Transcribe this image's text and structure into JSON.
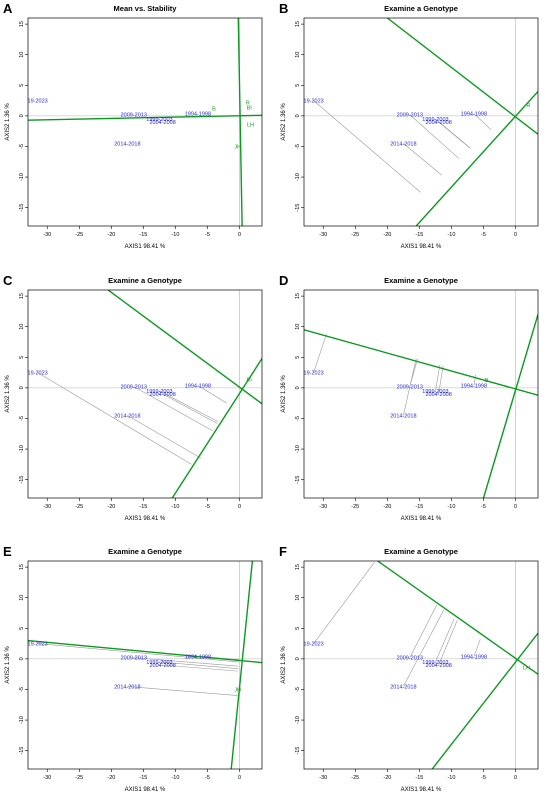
{
  "chart_data": [
    {
      "panel": "A",
      "type": "scatter",
      "title": "Mean vs. Stability",
      "xlabel": "AXIS1 98.41 %",
      "ylabel": "AXIS2 1.36 %",
      "xlim": [
        -33,
        3.5
      ],
      "ylim": [
        -18,
        16
      ],
      "xticks": [
        -30,
        -25,
        -20,
        -15,
        -10,
        -5,
        0
      ],
      "yticks": [
        -15,
        -10,
        -5,
        0,
        5,
        10,
        15
      ],
      "environments": [
        {
          "label": "19-2023",
          "x": -31.5,
          "y": 2.5
        },
        {
          "label": "2009-2013",
          "x": -16.5,
          "y": 0.2
        },
        {
          "label": "1999-2003",
          "x": -12.5,
          "y": -0.5
        },
        {
          "label": "2004-2008",
          "x": -12.0,
          "y": -1.0
        },
        {
          "label": "1994-1998",
          "x": -6.5,
          "y": 0.4
        },
        {
          "label": "2014-2018",
          "x": -17.5,
          "y": -4.5
        }
      ],
      "genotypes": [
        {
          "label": "R",
          "x": 1.3,
          "y": 2.2
        },
        {
          "label": "BI",
          "x": 1.5,
          "y": 1.4
        },
        {
          "label": "LH",
          "x": 1.7,
          "y": -1.4
        },
        {
          "label": "JH",
          "x": -0.3,
          "y": -5.0
        },
        {
          "label": "B",
          "x": -4.0,
          "y": 1.2
        }
      ],
      "green_lines": [
        {
          "from": [
            -33,
            -0.7
          ],
          "to": [
            3.5,
            0.1
          ]
        },
        {
          "from": [
            -0.2,
            16
          ],
          "to": [
            0.4,
            -18
          ]
        }
      ],
      "projections": []
    },
    {
      "panel": "B",
      "type": "scatter",
      "title": "Examine a Genotype",
      "xlabel": "AXIS1 98.41 %",
      "ylabel": "AXIS2 1.36 %",
      "xlim": [
        -33,
        3.5
      ],
      "ylim": [
        -18,
        16
      ],
      "xticks": [
        -30,
        -25,
        -20,
        -15,
        -10,
        -5,
        0
      ],
      "yticks": [
        -15,
        -10,
        -5,
        0,
        5,
        10,
        15
      ],
      "environments": [
        {
          "label": "19-2023",
          "x": -31.5,
          "y": 2.5
        },
        {
          "label": "2009-2013",
          "x": -16.5,
          "y": 0.2
        },
        {
          "label": "1999-2003",
          "x": -12.5,
          "y": -0.5
        },
        {
          "label": "2004-2008",
          "x": -12.0,
          "y": -1.0
        },
        {
          "label": "1994-1998",
          "x": -6.5,
          "y": 0.4
        },
        {
          "label": "2014-2018",
          "x": -17.5,
          "y": -4.5
        }
      ],
      "genotypes": [
        {
          "label": "R",
          "x": 2.0,
          "y": 1.8
        }
      ],
      "green_lines": [
        {
          "from": [
            -20,
            16
          ],
          "to": [
            3.5,
            -3
          ]
        },
        {
          "from": [
            -15.5,
            -18
          ],
          "to": [
            3.5,
            4.0
          ]
        }
      ],
      "projections": [
        {
          "from": [
            -31.5,
            2.5
          ],
          "to": [
            -14.8,
            -12.5
          ]
        },
        {
          "from": [
            -16.5,
            0.2
          ],
          "to": [
            -8.8,
            -7.0
          ]
        },
        {
          "from": [
            -12.5,
            -0.5
          ],
          "to": [
            -7.0,
            -5.3
          ]
        },
        {
          "from": [
            -12.0,
            -1.0
          ],
          "to": [
            -7.2,
            -5.2
          ]
        },
        {
          "from": [
            -6.5,
            0.4
          ],
          "to": [
            -3.8,
            -2.3
          ]
        },
        {
          "from": [
            -17.5,
            -4.5
          ],
          "to": [
            -11.5,
            -9.7
          ]
        }
      ]
    },
    {
      "panel": "C",
      "type": "scatter",
      "title": "Examine a Genotype",
      "xlabel": "AXIS1 98.41 %",
      "ylabel": "AXIS2 1.36 %",
      "xlim": [
        -33,
        3.5
      ],
      "ylim": [
        -18,
        16
      ],
      "xticks": [
        -30,
        -25,
        -20,
        -15,
        -10,
        -5,
        0
      ],
      "yticks": [
        -15,
        -10,
        -5,
        0,
        5,
        10,
        15
      ],
      "environments": [
        {
          "label": "19-2023",
          "x": -31.5,
          "y": 2.5
        },
        {
          "label": "2009-2013",
          "x": -16.5,
          "y": 0.2
        },
        {
          "label": "1999-2003",
          "x": -12.5,
          "y": -0.5
        },
        {
          "label": "2004-2008",
          "x": -12.0,
          "y": -1.0
        },
        {
          "label": "1994-1998",
          "x": -6.5,
          "y": 0.4
        },
        {
          "label": "2014-2018",
          "x": -17.5,
          "y": -4.5
        }
      ],
      "genotypes": [
        {
          "label": "BI",
          "x": 1.5,
          "y": 1.4
        }
      ],
      "green_lines": [
        {
          "from": [
            -20.5,
            16
          ],
          "to": [
            3.5,
            -2.6
          ]
        },
        {
          "from": [
            -10.5,
            -18
          ],
          "to": [
            3.5,
            4.8
          ]
        }
      ],
      "projections": [
        {
          "from": [
            -31.5,
            2.5
          ],
          "to": [
            -7.5,
            -12.5
          ]
        },
        {
          "from": [
            -16.5,
            0.2
          ],
          "to": [
            -4.2,
            -7.0
          ]
        },
        {
          "from": [
            -12.5,
            -0.5
          ],
          "to": [
            -3.4,
            -5.5
          ]
        },
        {
          "from": [
            -12.0,
            -1.0
          ],
          "to": [
            -3.5,
            -5.8
          ]
        },
        {
          "from": [
            -6.5,
            0.4
          ],
          "to": [
            -2.0,
            -2.5
          ]
        },
        {
          "from": [
            -17.5,
            -4.5
          ],
          "to": [
            -6.0,
            -11.5
          ]
        }
      ]
    },
    {
      "panel": "D",
      "type": "scatter",
      "title": "Examine a Genotype",
      "xlabel": "AXIS1 98.41 %",
      "ylabel": "AXIS2 1.36 %",
      "xlim": [
        -33,
        3.5
      ],
      "ylim": [
        -18,
        16
      ],
      "xticks": [
        -30,
        -25,
        -20,
        -15,
        -10,
        -5,
        0
      ],
      "yticks": [
        -15,
        -10,
        -5,
        0,
        5,
        10,
        15
      ],
      "environments": [
        {
          "label": "19-2023",
          "x": -31.5,
          "y": 2.5
        },
        {
          "label": "2009-2013",
          "x": -16.5,
          "y": 0.2
        },
        {
          "label": "1999-2003",
          "x": -12.5,
          "y": -0.5
        },
        {
          "label": "2004-2008",
          "x": -12.0,
          "y": -1.0
        },
        {
          "label": "1994-1998",
          "x": -6.5,
          "y": 0.4
        },
        {
          "label": "2014-2018",
          "x": -17.5,
          "y": -4.5
        }
      ],
      "genotypes": [
        {
          "label": "B",
          "x": -4.5,
          "y": 1.3
        }
      ],
      "green_lines": [
        {
          "from": [
            -33,
            9.5
          ],
          "to": [
            3.5,
            -1.2
          ]
        },
        {
          "from": [
            -5.0,
            -18
          ],
          "to": [
            3.5,
            12.0
          ]
        }
      ],
      "projections": [
        {
          "from": [
            -31.5,
            2.5
          ],
          "to": [
            -29.5,
            8.8
          ]
        },
        {
          "from": [
            -16.5,
            0.2
          ],
          "to": [
            -15.3,
            4.7
          ]
        },
        {
          "from": [
            -12.5,
            -0.5
          ],
          "to": [
            -11.8,
            3.8
          ]
        },
        {
          "from": [
            -12.0,
            -1.0
          ],
          "to": [
            -11.3,
            3.6
          ]
        },
        {
          "from": [
            -6.5,
            0.4
          ],
          "to": [
            -6.2,
            2.2
          ]
        },
        {
          "from": [
            -17.5,
            -4.5
          ],
          "to": [
            -15.5,
            4.8
          ]
        }
      ]
    },
    {
      "panel": "E",
      "type": "scatter",
      "title": "Examine a Genotype",
      "xlabel": "AXIS1 98.41 %",
      "ylabel": "AXIS2 1.36 %",
      "xlim": [
        -33,
        3.5
      ],
      "ylim": [
        -18,
        16
      ],
      "xticks": [
        -30,
        -25,
        -20,
        -15,
        -10,
        -5,
        0
      ],
      "yticks": [
        -15,
        -10,
        -5,
        0,
        5,
        10,
        15
      ],
      "environments": [
        {
          "label": "19-2023",
          "x": -31.5,
          "y": 2.5
        },
        {
          "label": "2009-2013",
          "x": -16.5,
          "y": 0.2
        },
        {
          "label": "1999-2003",
          "x": -12.5,
          "y": -0.5
        },
        {
          "label": "2004-2008",
          "x": -12.0,
          "y": -1.0
        },
        {
          "label": "1994-1998",
          "x": -6.5,
          "y": 0.4
        },
        {
          "label": "2014-2018",
          "x": -17.5,
          "y": -4.5
        }
      ],
      "genotypes": [
        {
          "label": "JH",
          "x": -0.3,
          "y": -5.0
        }
      ],
      "green_lines": [
        {
          "from": [
            -33,
            3.0
          ],
          "to": [
            3.5,
            -0.6
          ]
        },
        {
          "from": [
            -1.3,
            -18
          ],
          "to": [
            2.0,
            16
          ]
        }
      ],
      "projections": [
        {
          "from": [
            -31.5,
            2.5
          ],
          "to": [
            -0.1,
            -0.5
          ]
        },
        {
          "from": [
            -16.5,
            0.2
          ],
          "to": [
            -0.2,
            -1.2
          ]
        },
        {
          "from": [
            -12.5,
            -0.5
          ],
          "to": [
            -0.2,
            -1.6
          ]
        },
        {
          "from": [
            -12.0,
            -1.0
          ],
          "to": [
            -0.3,
            -2.0
          ]
        },
        {
          "from": [
            -6.5,
            0.4
          ],
          "to": [
            -0.1,
            -0.1
          ]
        },
        {
          "from": [
            -17.5,
            -4.5
          ],
          "to": [
            -0.3,
            -6.0
          ]
        }
      ]
    },
    {
      "panel": "F",
      "type": "scatter",
      "title": "Examine a Genotype",
      "xlabel": "AXIS1 98.41 %",
      "ylabel": "AXIS2 1.36 %",
      "xlim": [
        -33,
        3.5
      ],
      "ylim": [
        -18,
        16
      ],
      "xticks": [
        -30,
        -25,
        -20,
        -15,
        -10,
        -5,
        0
      ],
      "yticks": [
        -15,
        -10,
        -5,
        0,
        5,
        10,
        15
      ],
      "environments": [
        {
          "label": "19-2023",
          "x": -31.5,
          "y": 2.5
        },
        {
          "label": "2009-2013",
          "x": -16.5,
          "y": 0.2
        },
        {
          "label": "1999-2003",
          "x": -12.5,
          "y": -0.5
        },
        {
          "label": "2004-2008",
          "x": -12.0,
          "y": -1.0
        },
        {
          "label": "1994-1998",
          "x": -6.5,
          "y": 0.4
        },
        {
          "label": "2014-2018",
          "x": -17.5,
          "y": -4.5
        }
      ],
      "genotypes": [
        {
          "label": "LH",
          "x": 1.7,
          "y": -1.4
        }
      ],
      "green_lines": [
        {
          "from": [
            -21.5,
            16
          ],
          "to": [
            3.5,
            -2.5
          ]
        },
        {
          "from": [
            -13.0,
            -18
          ],
          "to": [
            3.5,
            4.2
          ]
        }
      ],
      "projections": [
        {
          "from": [
            -31.5,
            2.5
          ],
          "to": [
            -22.0,
            15.8
          ]
        },
        {
          "from": [
            -16.5,
            0.2
          ],
          "to": [
            -12.3,
            8.8
          ]
        },
        {
          "from": [
            -12.5,
            -0.5
          ],
          "to": [
            -9.6,
            6.5
          ]
        },
        {
          "from": [
            -12.0,
            -1.0
          ],
          "to": [
            -9.1,
            6.3
          ]
        },
        {
          "from": [
            -6.5,
            0.4
          ],
          "to": [
            -5.5,
            3.2
          ]
        },
        {
          "from": [
            -17.5,
            -4.5
          ],
          "to": [
            -11.2,
            8.0
          ]
        }
      ]
    }
  ]
}
